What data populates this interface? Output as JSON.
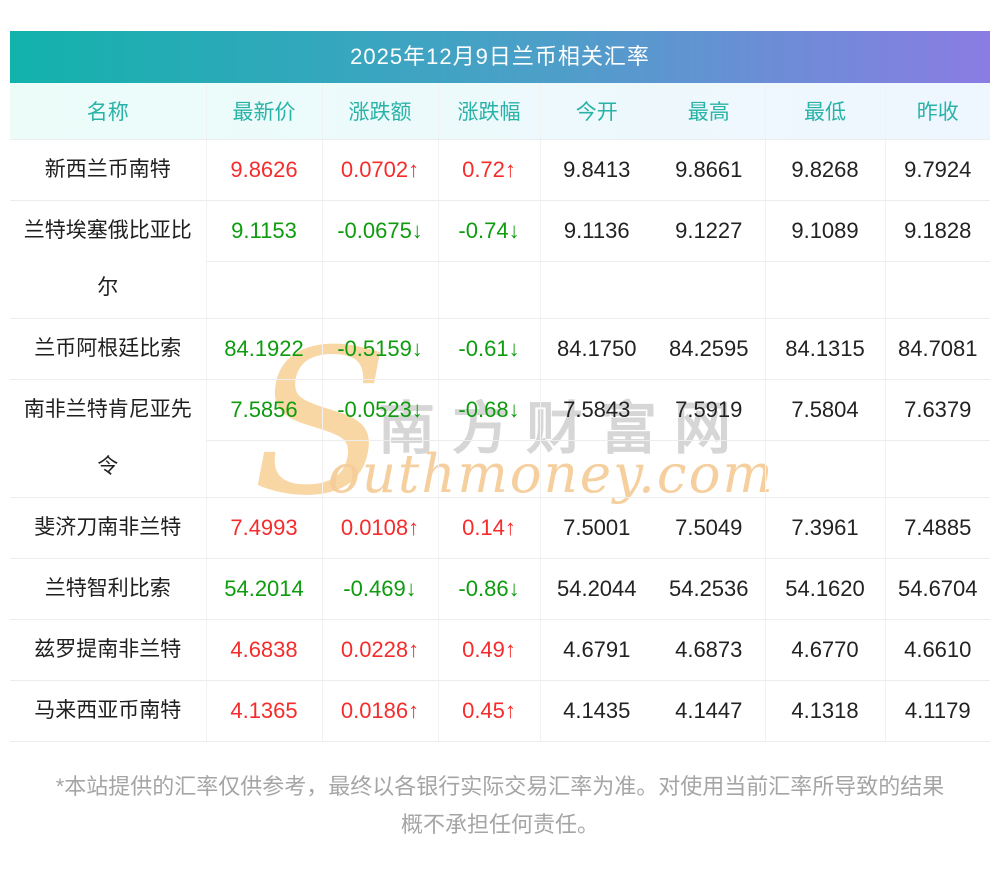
{
  "page": {
    "title": "2025年12月9日兰币相关汇率",
    "footnote_line1": "*本站提供的汇率仅供参考，最终以各银行实际交易汇率为准。对使用当前汇率所导致的结果",
    "footnote_line2": "概不承担任何责任。"
  },
  "colors": {
    "title_gradient_start": "#12b2ac",
    "title_gradient_end": "#8a7ce3",
    "header_text": "#29b3a8",
    "up_red": "#f62c2c",
    "down_green": "#0e9c0e"
  },
  "watermark": {
    "s_glyph": "S",
    "cn_text": "南方财富网",
    "en_text": "outhmoney.com"
  },
  "table": {
    "columns": [
      "名称",
      "最新价",
      "涨跌额",
      "涨跌幅",
      "今开",
      "最高",
      "最低",
      "昨收"
    ],
    "rows": [
      {
        "name": "新西兰币南特",
        "last": "9.8626",
        "change": "0.0702↑",
        "pct": "0.72↑",
        "open": "9.8413",
        "high": "9.8661",
        "low": "9.8268",
        "prev": "9.7924",
        "dir": "up",
        "tall": false
      },
      {
        "name": "兰特埃塞俄比亚比尔",
        "last": "9.1153",
        "change": "-0.0675↓",
        "pct": "-0.74↓",
        "open": "9.1136",
        "high": "9.1227",
        "low": "9.1089",
        "prev": "9.1828",
        "dir": "down",
        "tall": true
      },
      {
        "name": "兰币阿根廷比索",
        "last": "84.1922",
        "change": "-0.5159↓",
        "pct": "-0.61↓",
        "open": "84.1750",
        "high": "84.2595",
        "low": "84.1315",
        "prev": "84.7081",
        "dir": "down",
        "tall": false
      },
      {
        "name": "南非兰特肯尼亚先令",
        "last": "7.5856",
        "change": "-0.0523↓",
        "pct": "-0.68↓",
        "open": "7.5843",
        "high": "7.5919",
        "low": "7.5804",
        "prev": "7.6379",
        "dir": "down",
        "tall": true
      },
      {
        "name": "斐济刀南非兰特",
        "last": "7.4993",
        "change": "0.0108↑",
        "pct": "0.14↑",
        "open": "7.5001",
        "high": "7.5049",
        "low": "7.3961",
        "prev": "7.4885",
        "dir": "up",
        "tall": false
      },
      {
        "name": "兰特智利比索",
        "last": "54.2014",
        "change": "-0.469↓",
        "pct": "-0.86↓",
        "open": "54.2044",
        "high": "54.2536",
        "low": "54.1620",
        "prev": "54.6704",
        "dir": "down",
        "tall": false
      },
      {
        "name": "兹罗提南非兰特",
        "last": "4.6838",
        "change": "0.0228↑",
        "pct": "0.49↑",
        "open": "4.6791",
        "high": "4.6873",
        "low": "4.6770",
        "prev": "4.6610",
        "dir": "up",
        "tall": false
      },
      {
        "name": "马来西亚币南特",
        "last": "4.1365",
        "change": "0.0186↑",
        "pct": "0.45↑",
        "open": "4.1435",
        "high": "4.1447",
        "low": "4.1318",
        "prev": "4.1179",
        "dir": "up",
        "tall": false
      }
    ]
  }
}
